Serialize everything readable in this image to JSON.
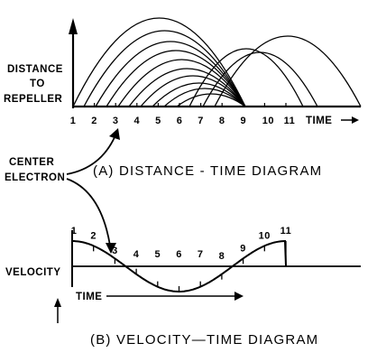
{
  "panel_a": {
    "ylabel": [
      "DISTANCE",
      "TO",
      "REPELLER"
    ],
    "tick_labels": [
      "1",
      "2",
      "3",
      "4",
      "5",
      "6",
      "7",
      "8",
      "9",
      "10",
      "11"
    ],
    "xlabel": "TIME",
    "caption": "(A)  DISTANCE - TIME  DIAGRAM"
  },
  "center_electron": {
    "label_line1": "CENTER",
    "label_line2": "ELECTRON"
  },
  "panel_b": {
    "ylabel": "VELOCITY",
    "xlabel": "TIME",
    "point_labels": [
      "1",
      "2",
      "3",
      "4",
      "5",
      "6",
      "7",
      "8",
      "9",
      "10",
      "11"
    ],
    "caption": "(B)  VELOCITY—TIME  DIAGRAM"
  }
}
